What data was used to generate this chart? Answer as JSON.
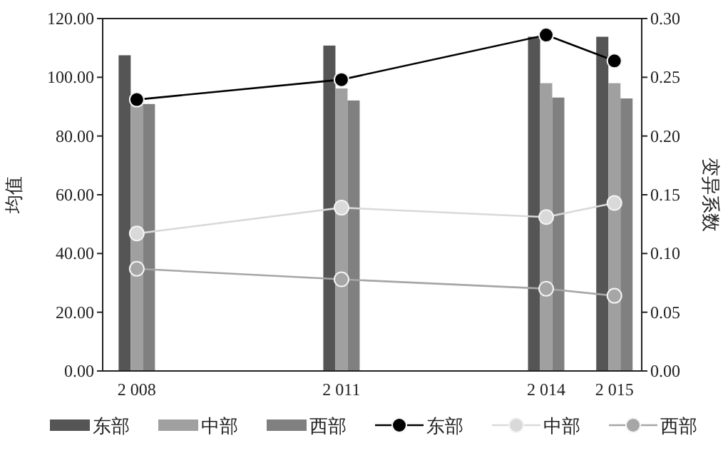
{
  "chart_data": {
    "type": "bar",
    "ylabel": "均值",
    "y2label": "变异系数",
    "x": [
      2008,
      2011,
      2014,
      2015
    ],
    "xlim": [
      2007.5,
      2015.4
    ],
    "xticks": [
      {
        "value": 2008,
        "label": "2 008"
      },
      {
        "value": 2011,
        "label": "2 011"
      },
      {
        "value": 2014,
        "label": "2 014"
      },
      {
        "value": 2015,
        "label": "2 015"
      }
    ],
    "ylim": [
      0,
      120
    ],
    "yticks": [
      {
        "value": 0,
        "label": "0.00"
      },
      {
        "value": 20,
        "label": "20.00"
      },
      {
        "value": 40,
        "label": "40.00"
      },
      {
        "value": 60,
        "label": "60.00"
      },
      {
        "value": 80,
        "label": "80.00"
      },
      {
        "value": 100,
        "label": "100.00"
      },
      {
        "value": 120,
        "label": "120.00"
      }
    ],
    "y2lim": [
      0,
      0.3
    ],
    "y2ticks": [
      {
        "value": 0,
        "label": "0.00"
      },
      {
        "value": 0.05,
        "label": "0.05"
      },
      {
        "value": 0.1,
        "label": "0.10"
      },
      {
        "value": 0.15,
        "label": "0.15"
      },
      {
        "value": 0.2,
        "label": "0.20"
      },
      {
        "value": 0.25,
        "label": "0.25"
      },
      {
        "value": 0.3,
        "label": "0.30"
      }
    ],
    "series": [
      {
        "name": "东部",
        "color": "#555555",
        "values": [
          107.5,
          110.8,
          113.8,
          113.8
        ]
      },
      {
        "name": "中部",
        "color": "#a0a0a0",
        "values": [
          92,
          96.2,
          98,
          98
        ]
      },
      {
        "name": "西部",
        "color": "#808080",
        "values": [
          90.9,
          92.1,
          93.1,
          92.8
        ]
      },
      {
        "name": "东部",
        "type": "line",
        "axis": "y2",
        "color": "#000000",
        "values": [
          0.231,
          0.248,
          0.286,
          0.264
        ]
      },
      {
        "name": "中部",
        "type": "line",
        "axis": "y2",
        "color": "#d9d9d9",
        "values": [
          0.117,
          0.139,
          0.131,
          0.143
        ]
      },
      {
        "name": "西部",
        "type": "line",
        "axis": "y2",
        "color": "#a6a6a6",
        "values": [
          0.087,
          0.078,
          0.07,
          0.064
        ]
      }
    ],
    "marker": "circle",
    "legend": "bottom"
  }
}
